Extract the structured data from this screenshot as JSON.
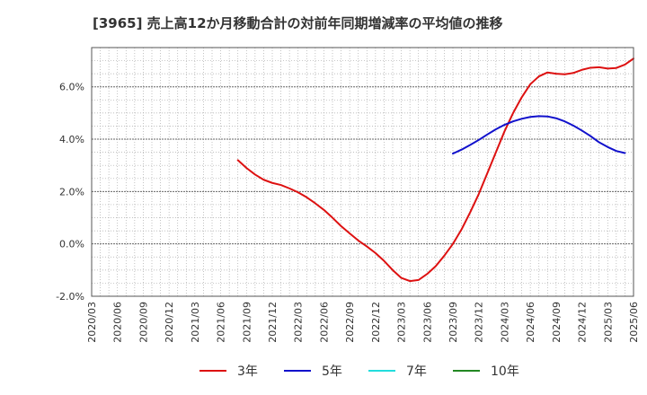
{
  "chart_data": {
    "type": "line",
    "title": "[3965]  売上高12か月移動合計の対前年同期増減率の平均値の推移",
    "xlabel": "",
    "ylabel": "",
    "ylim": [
      -2.0,
      7.5
    ],
    "y_ticks": [
      -2.0,
      0.0,
      2.0,
      4.0,
      6.0
    ],
    "y_tick_labels": [
      "-2.0%",
      "0.0%",
      "2.0%",
      "4.0%",
      "6.0%"
    ],
    "x_tick_labels": [
      "2020/03",
      "2020/06",
      "2020/09",
      "2020/12",
      "2021/03",
      "2021/06",
      "2021/09",
      "2021/12",
      "2022/03",
      "2022/06",
      "2022/09",
      "2022/12",
      "2023/03",
      "2023/06",
      "2023/09",
      "2023/12",
      "2024/03",
      "2024/06",
      "2024/09",
      "2024/12",
      "2025/03",
      "2025/06"
    ],
    "grid": true,
    "legend_position": "bottom",
    "series": [
      {
        "name": "3年",
        "color": "#dd1111",
        "points": [
          [
            "2021/08",
            3.2
          ],
          [
            "2021/09",
            2.9
          ],
          [
            "2021/10",
            2.65
          ],
          [
            "2021/11",
            2.45
          ],
          [
            "2021/12",
            2.33
          ],
          [
            "2022/01",
            2.25
          ],
          [
            "2022/02",
            2.12
          ],
          [
            "2022/03",
            1.97
          ],
          [
            "2022/04",
            1.78
          ],
          [
            "2022/05",
            1.55
          ],
          [
            "2022/06",
            1.3
          ],
          [
            "2022/07",
            1.0
          ],
          [
            "2022/08",
            0.68
          ],
          [
            "2022/09",
            0.4
          ],
          [
            "2022/10",
            0.13
          ],
          [
            "2022/11",
            -0.1
          ],
          [
            "2022/12",
            -0.35
          ],
          [
            "2023/01",
            -0.65
          ],
          [
            "2023/02",
            -1.0
          ],
          [
            "2023/03",
            -1.3
          ],
          [
            "2023/04",
            -1.42
          ],
          [
            "2023/05",
            -1.38
          ],
          [
            "2023/06",
            -1.15
          ],
          [
            "2023/07",
            -0.85
          ],
          [
            "2023/08",
            -0.45
          ],
          [
            "2023/09",
            0.0
          ],
          [
            "2023/10",
            0.55
          ],
          [
            "2023/11",
            1.2
          ],
          [
            "2023/12",
            1.9
          ],
          [
            "2024/01",
            2.7
          ],
          [
            "2024/02",
            3.5
          ],
          [
            "2024/03",
            4.3
          ],
          [
            "2024/04",
            5.0
          ],
          [
            "2024/05",
            5.6
          ],
          [
            "2024/06",
            6.1
          ],
          [
            "2024/07",
            6.4
          ],
          [
            "2024/08",
            6.55
          ],
          [
            "2024/09",
            6.5
          ],
          [
            "2024/10",
            6.48
          ],
          [
            "2024/11",
            6.53
          ],
          [
            "2024/12",
            6.65
          ],
          [
            "2025/01",
            6.73
          ],
          [
            "2025/02",
            6.75
          ],
          [
            "2025/03",
            6.7
          ],
          [
            "2025/04",
            6.72
          ],
          [
            "2025/05",
            6.85
          ],
          [
            "2025/06",
            7.08
          ]
        ]
      },
      {
        "name": "5年",
        "color": "#1111cc",
        "points": [
          [
            "2023/09",
            3.45
          ],
          [
            "2023/10",
            3.6
          ],
          [
            "2023/11",
            3.78
          ],
          [
            "2023/12",
            3.97
          ],
          [
            "2024/01",
            4.18
          ],
          [
            "2024/02",
            4.38
          ],
          [
            "2024/03",
            4.55
          ],
          [
            "2024/04",
            4.68
          ],
          [
            "2024/05",
            4.78
          ],
          [
            "2024/06",
            4.85
          ],
          [
            "2024/07",
            4.88
          ],
          [
            "2024/08",
            4.87
          ],
          [
            "2024/09",
            4.8
          ],
          [
            "2024/10",
            4.68
          ],
          [
            "2024/11",
            4.52
          ],
          [
            "2024/12",
            4.33
          ],
          [
            "2025/01",
            4.12
          ],
          [
            "2025/02",
            3.88
          ],
          [
            "2025/03",
            3.7
          ],
          [
            "2025/04",
            3.55
          ],
          [
            "2025/05",
            3.47
          ]
        ]
      },
      {
        "name": "7年",
        "color": "#22dddd",
        "points": []
      },
      {
        "name": "10年",
        "color": "#228822",
        "points": []
      }
    ]
  }
}
